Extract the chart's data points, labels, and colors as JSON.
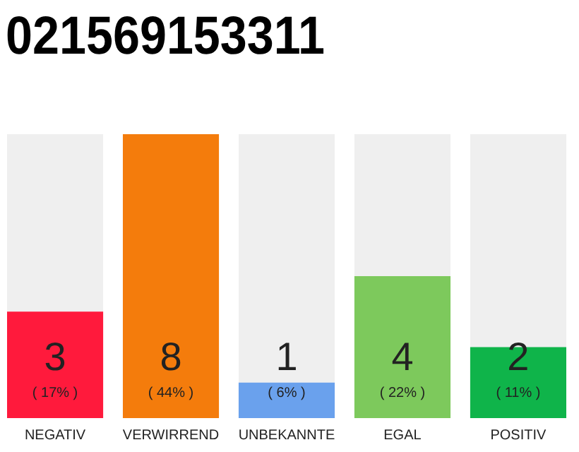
{
  "chart_data": {
    "type": "bar",
    "title": "021569153311",
    "categories": [
      "NEGATIV",
      "VERWIRREND",
      "UNBEKANNTE",
      "EGAL",
      "POSITIV"
    ],
    "values": [
      3,
      8,
      1,
      4,
      2
    ],
    "colors": [
      "#ff1a3c",
      "#f47c0c",
      "#6aa1ed",
      "#7dc95c",
      "#0fb44a"
    ],
    "data_labels": true,
    "annotations": [
      "( 17% )",
      "( 44% )",
      "( 6% )",
      "( 22% )",
      "( 11% )"
    ]
  }
}
